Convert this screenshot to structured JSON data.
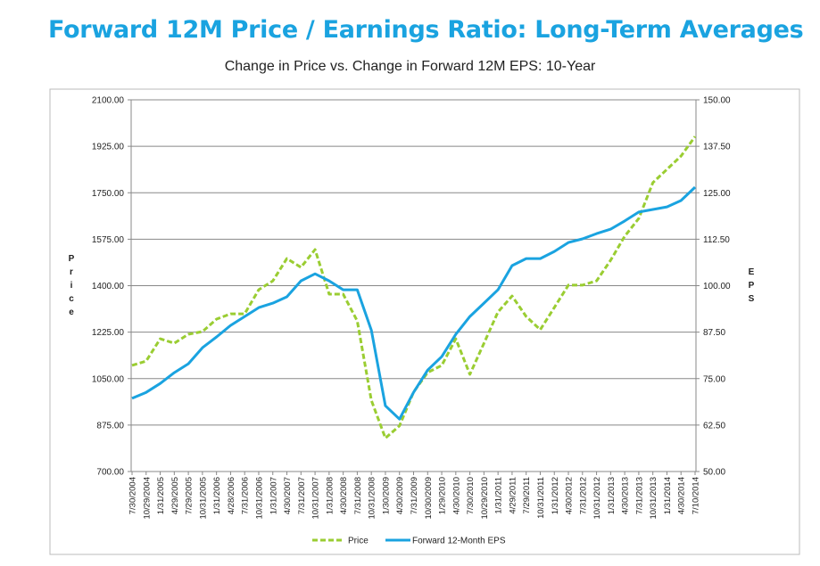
{
  "title": "Forward 12M Price / Earnings Ratio: Long-Term Averages",
  "chart_data": {
    "type": "line",
    "title": "Change in Price vs. Change in Forward 12M EPS: 10-Year",
    "ylabel": "Price",
    "y2label": "EPS",
    "ylim": [
      700,
      2100
    ],
    "y2lim": [
      50,
      150
    ],
    "yticks": [
      "700.00",
      "875.00",
      "1050.00",
      "1225.00",
      "1400.00",
      "1575.00",
      "1750.00",
      "1925.00",
      "2100.00"
    ],
    "y2ticks": [
      "50.00",
      "62.50",
      "75.00",
      "87.50",
      "100.00",
      "112.50",
      "125.00",
      "137.50",
      "150.00"
    ],
    "grid": true,
    "legend": "bottom",
    "categories": [
      "7/30/2004",
      "10/29/2004",
      "1/31/2005",
      "4/29/2005",
      "7/29/2005",
      "10/31/2005",
      "1/31/2006",
      "4/28/2006",
      "7/31/2006",
      "10/31/2006",
      "1/31/2007",
      "4/30/2007",
      "7/31/2007",
      "10/31/2007",
      "1/31/2008",
      "4/30/2008",
      "7/31/2008",
      "10/31/2008",
      "1/30/2009",
      "4/30/2009",
      "7/31/2009",
      "10/30/2009",
      "1/29/2010",
      "4/30/2010",
      "7/30/2010",
      "10/29/2010",
      "1/31/2011",
      "4/29/2011",
      "7/29/2011",
      "10/31/2011",
      "1/31/2012",
      "4/30/2012",
      "7/31/2012",
      "10/31/2012",
      "1/31/2013",
      "4/30/2013",
      "7/31/2013",
      "10/31/2013",
      "1/31/2014",
      "4/30/2014",
      "7/10/2014"
    ],
    "series": [
      {
        "name": "Price",
        "axis": "left",
        "color": "#9acd32",
        "style": "dashed",
        "values": [
          1100,
          1116,
          1200,
          1183,
          1217,
          1227,
          1274,
          1294,
          1294,
          1385,
          1418,
          1502,
          1469,
          1536,
          1368,
          1368,
          1267,
          968,
          826,
          872,
          999,
          1073,
          1100,
          1200,
          1066,
          1183,
          1301,
          1361,
          1284,
          1234,
          1318,
          1402,
          1402,
          1418,
          1496,
          1586,
          1653,
          1788,
          1838,
          1888,
          1962
        ]
      },
      {
        "name": "Forward 12-Month EPS",
        "axis": "right",
        "color": "#1aa3e0",
        "style": "solid",
        "values": [
          69.7,
          71.3,
          73.7,
          76.6,
          79.0,
          83.3,
          86.2,
          89.3,
          91.7,
          94.1,
          95.3,
          97.0,
          101.3,
          103.2,
          101.3,
          98.9,
          98.9,
          88.0,
          67.7,
          64.1,
          71.3,
          77.3,
          80.9,
          86.9,
          91.7,
          95.3,
          98.9,
          105.4,
          107.3,
          107.3,
          109.2,
          111.6,
          112.6,
          114.0,
          115.2,
          117.4,
          119.8,
          120.5,
          121.2,
          122.9,
          126.5
        ]
      }
    ]
  }
}
